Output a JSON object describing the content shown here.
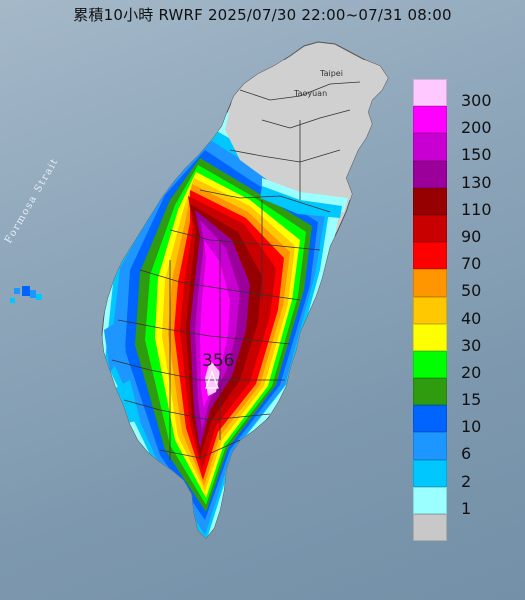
{
  "title": "累積10小時 RWRF 2025/07/30 22:00~07/31 08:00",
  "labels": {
    "strait": "Formosa Strait",
    "taipei": "Taipei",
    "taoyuan": "Taoyuan",
    "max_value": "356"
  },
  "legend": [
    {
      "label": "300",
      "color": "#ffc8ff"
    },
    {
      "label": "200",
      "color": "#ff00ff"
    },
    {
      "label": "150",
      "color": "#c800d2"
    },
    {
      "label": "130",
      "color": "#9b009b"
    },
    {
      "label": "110",
      "color": "#960000"
    },
    {
      "label": "90",
      "color": "#c80000"
    },
    {
      "label": "70",
      "color": "#ff0000"
    },
    {
      "label": "50",
      "color": "#ff9600"
    },
    {
      "label": "40",
      "color": "#ffc800"
    },
    {
      "label": "30",
      "color": "#ffff00"
    },
    {
      "label": "20",
      "color": "#00ff00"
    },
    {
      "label": "15",
      "color": "#2f9b0f"
    },
    {
      "label": "10",
      "color": "#0064ff"
    },
    {
      "label": "6",
      "color": "#1e96ff"
    },
    {
      "label": "2",
      "color": "#00c8ff"
    },
    {
      "label": "1",
      "color": "#9bffff"
    },
    {
      "label": "",
      "color": "#c8c8c8"
    }
  ]
}
